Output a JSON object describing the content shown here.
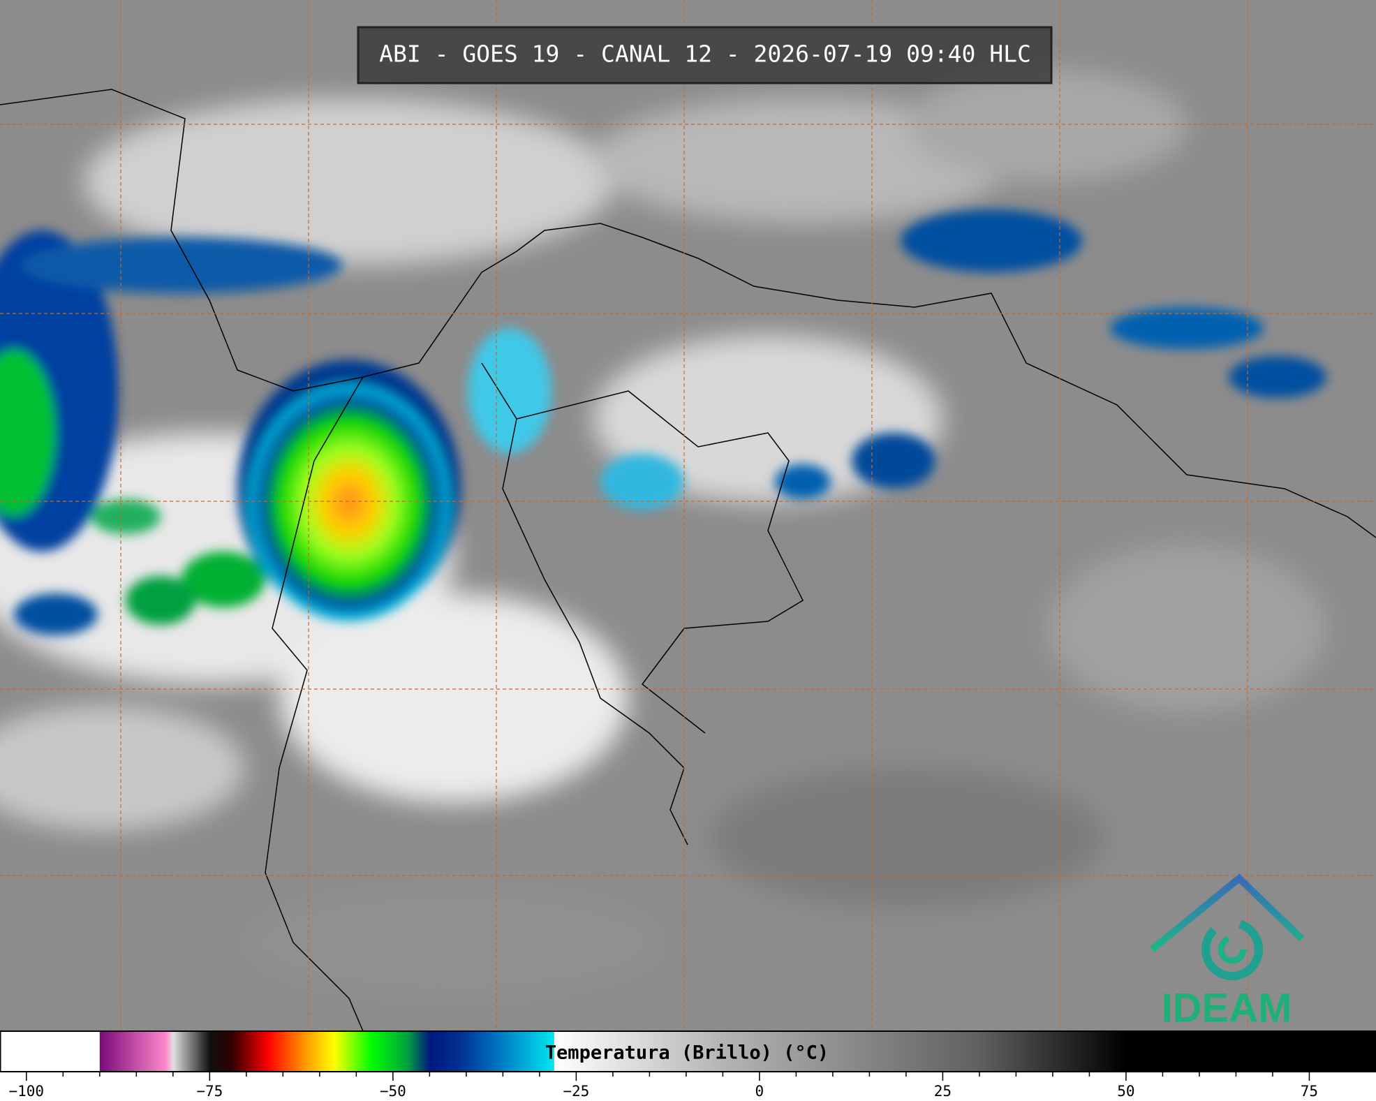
{
  "header": {
    "title": "ABI - GOES 19 - CANAL 12 - 2026-07-19 09:40 HLC"
  },
  "colorbar": {
    "label": "Temperatura (Brillo) (°C)",
    "xlim": [
      -103.6,
      84.1
    ],
    "ticks": [
      {
        "value": -100,
        "label": "−100"
      },
      {
        "value": -75,
        "label": "−75"
      },
      {
        "value": -50,
        "label": "−50"
      },
      {
        "value": -25,
        "label": "−25"
      },
      0,
      25,
      50,
      75
    ],
    "colormap": [
      [
        -103.6,
        "#ffffff"
      ],
      [
        -90,
        "#ffffff"
      ],
      [
        -90,
        "#7a0a7a"
      ],
      [
        -81,
        "#ff88cc"
      ],
      [
        -80,
        "#e0e0e0"
      ],
      [
        -75,
        "#101010"
      ],
      [
        -72,
        "#300000"
      ],
      [
        -67,
        "#ff0000"
      ],
      [
        -62,
        "#ff9900"
      ],
      [
        -58,
        "#ffff00"
      ],
      [
        -53,
        "#00ff00"
      ],
      [
        -48,
        "#00a040"
      ],
      [
        -45,
        "#001880"
      ],
      [
        -41,
        "#003090"
      ],
      [
        -36,
        "#0070c0"
      ],
      [
        -28,
        "#00e8f0"
      ],
      [
        -28,
        "#ffffff"
      ],
      [
        -5,
        "#b4b4b4"
      ],
      [
        30,
        "#606060"
      ],
      [
        50,
        "#000000"
      ],
      [
        84.1,
        "#000000"
      ]
    ]
  },
  "logo": {
    "text": "IDEAM"
  }
}
